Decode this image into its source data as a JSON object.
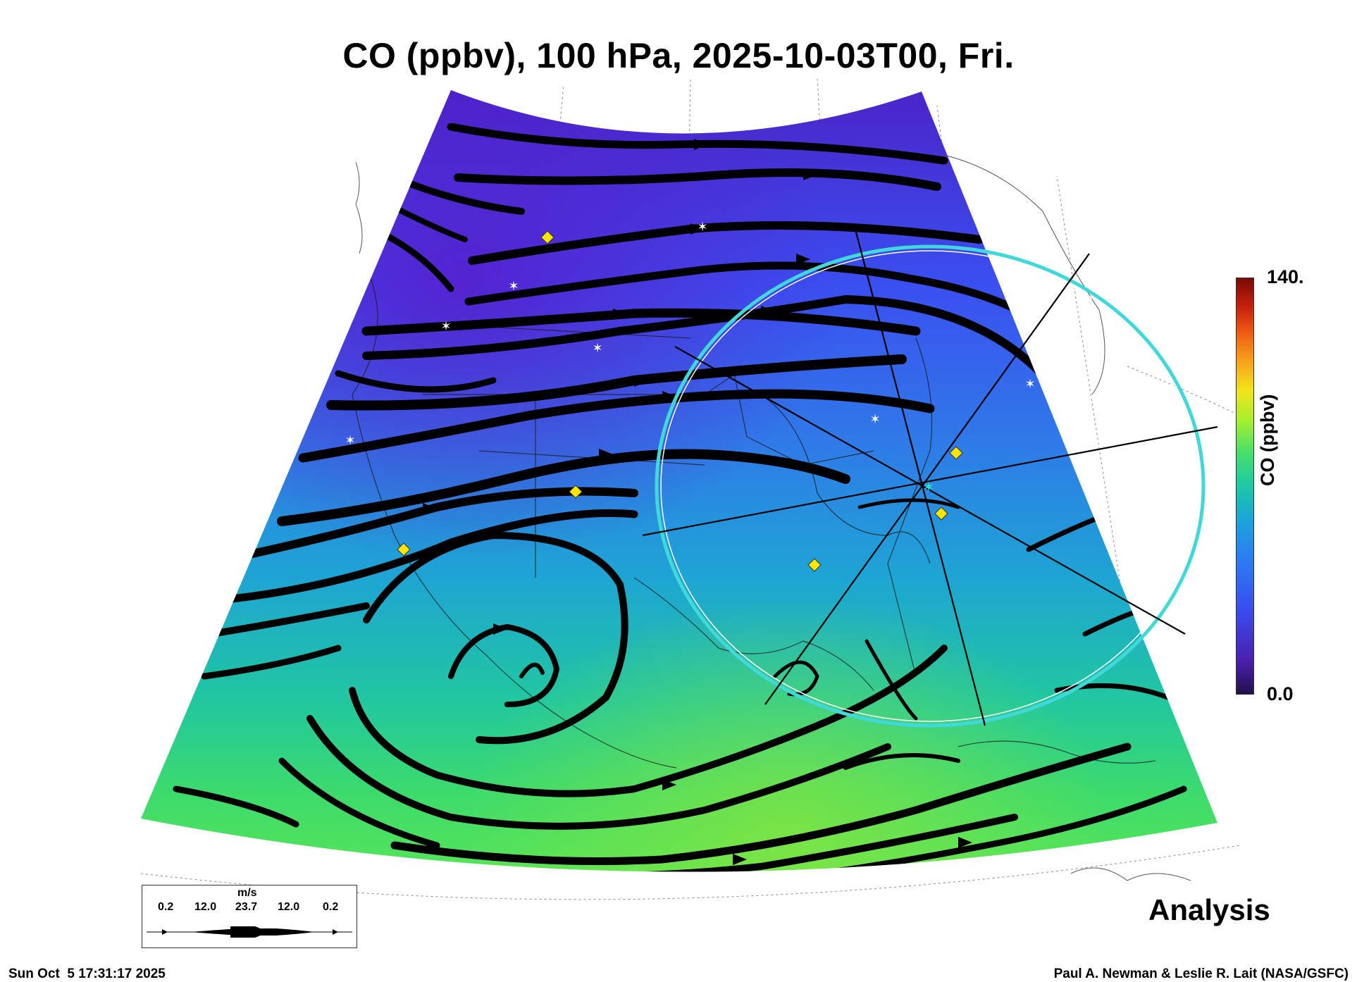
{
  "title": "CO (ppbv), 100 hPa, 2025-10-03T00, Fri.",
  "colorbar": {
    "label": "CO (ppbv)",
    "max_label": "140.",
    "min_label": "0.0",
    "colors": [
      "#23104a",
      "#3a4cf0",
      "#1aa6d8",
      "#45e06a",
      "#f2e41a",
      "#ef5a12",
      "#7a0a06"
    ]
  },
  "legend": {
    "unit": "m/s",
    "ticks": [
      "0.2",
      "12.0",
      "23.7",
      "12.0",
      "0.2"
    ]
  },
  "analysis_label": "Analysis",
  "footer": {
    "timestamp": "Sun Oct  5 17:31:17 2025",
    "credit": "Paul A. Newman & Leslie R. Lait (NASA/GSFC)"
  },
  "markers": {
    "star_color": "#ffffff",
    "diamond_color": "#ffe600",
    "center_marker_color": "#22e0d0",
    "range_ring_color": "#40d8d8"
  }
}
